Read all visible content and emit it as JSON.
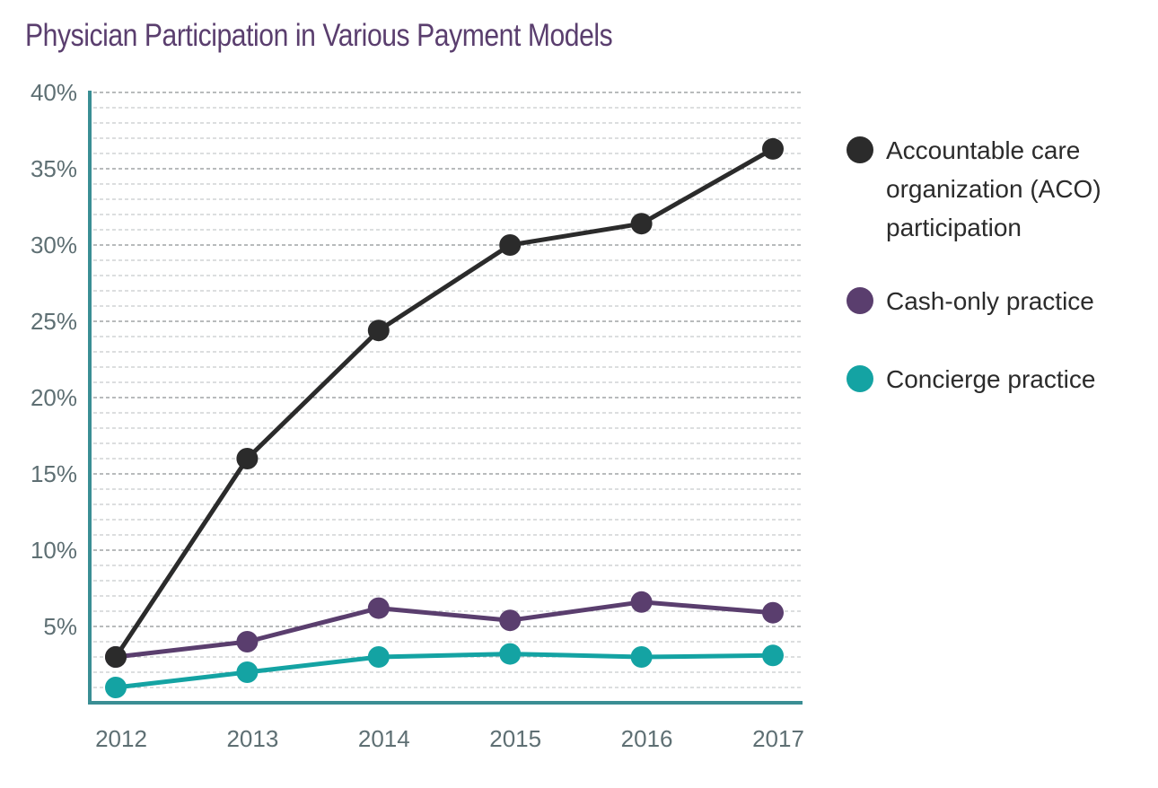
{
  "chart_data": {
    "type": "line",
    "title": "Physician Participation in Various Payment Models",
    "xlabel": "",
    "ylabel": "",
    "x": [
      "2012",
      "2013",
      "2014",
      "2015",
      "2016",
      "2017"
    ],
    "ylim": [
      0,
      40
    ],
    "y_tick_values": [
      5,
      10,
      15,
      20,
      25,
      30,
      35,
      40
    ],
    "y_tick_labels": [
      "5%",
      "10%",
      "15%",
      "20%",
      "25%",
      "30%",
      "35%",
      "40%"
    ],
    "grid": true,
    "legend_position": "right",
    "series": [
      {
        "name_lines": [
          "Accountable care",
          "organization (ACO)",
          "participation"
        ],
        "color": "#2b2b2b",
        "values": [
          3.0,
          16.0,
          24.4,
          30.0,
          31.4,
          36.3
        ]
      },
      {
        "name_lines": [
          "Cash-only practice"
        ],
        "color": "#5a3e6e",
        "values": [
          3.0,
          4.0,
          6.2,
          5.4,
          6.6,
          5.9
        ]
      },
      {
        "name_lines": [
          "Concierge practice"
        ],
        "color": "#14a3a3",
        "values": [
          1.0,
          2.0,
          3.0,
          3.2,
          3.0,
          3.1
        ]
      }
    ],
    "axis_color": "#3a8e94",
    "grid_color": "#9aa0a2"
  }
}
